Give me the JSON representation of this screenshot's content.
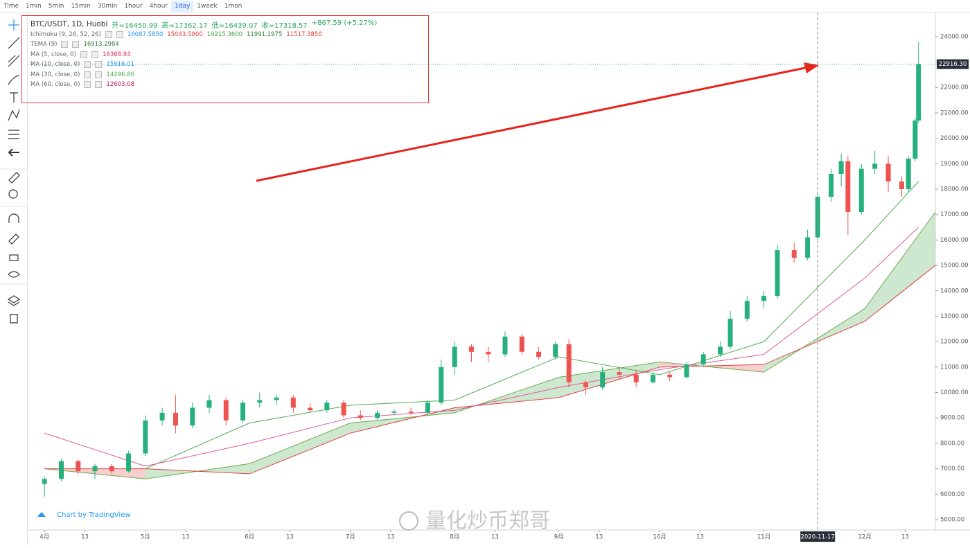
{
  "toolbar": {
    "items": [
      "Time",
      "1min",
      "5min",
      "15min",
      "30min",
      "1hour",
      "4hour",
      "1day",
      "1week",
      "1mon"
    ],
    "active": "1day"
  },
  "legend": {
    "title": "BTC/USDT, 1D, Huobi",
    "ohlc": [
      "开=16450.99",
      "高=17362.17",
      "低=16439.07",
      "收=17318.57",
      "+867.59 (+5.27%)"
    ],
    "indicators": [
      {
        "name": "Ichimoku (9, 26, 52, 26)",
        "values": [
          "16087.5850",
          "15043.5000",
          "19215.3600",
          "11991.1975",
          "11517.3850"
        ],
        "colors": [
          "#2196f3",
          "#e53935",
          "#43a047",
          "#2e7d32",
          "#e53935"
        ]
      },
      {
        "name": "TEMA (9)",
        "values": [
          "16913.2984"
        ],
        "colors": [
          "#2e7d32"
        ]
      },
      {
        "name": "MA (5, close, 0)",
        "values": [
          "16368.93"
        ],
        "colors": [
          "#e91e63"
        ]
      },
      {
        "name": "MA (10, close, 0)",
        "values": [
          "15916.01"
        ],
        "colors": [
          "#2196f3"
        ]
      },
      {
        "name": "MA (30, close, 0)",
        "values": [
          "14296.86"
        ],
        "colors": [
          "#4caf50"
        ]
      },
      {
        "name": "MA (60, close, 0)",
        "values": [
          "12603.08"
        ],
        "colors": [
          "#c2185b"
        ]
      }
    ]
  },
  "chart_data": {
    "type": "candlestick",
    "x": [
      "2020-04-01",
      "2020-04-06",
      "2020-04-11",
      "2020-04-16",
      "2020-04-21",
      "2020-04-26",
      "2020-05-01",
      "2020-05-06",
      "2020-05-10",
      "2020-05-15",
      "2020-05-20",
      "2020-05-25",
      "2020-05-30",
      "2020-06-04",
      "2020-06-09",
      "2020-06-14",
      "2020-06-19",
      "2020-06-24",
      "2020-06-29",
      "2020-07-04",
      "2020-07-09",
      "2020-07-14",
      "2020-07-19",
      "2020-07-24",
      "2020-07-28",
      "2020-08-01",
      "2020-08-06",
      "2020-08-11",
      "2020-08-16",
      "2020-08-21",
      "2020-08-26",
      "2020-08-31",
      "2020-09-04",
      "2020-09-09",
      "2020-09-14",
      "2020-09-19",
      "2020-09-24",
      "2020-09-29",
      "2020-10-04",
      "2020-10-09",
      "2020-10-14",
      "2020-10-19",
      "2020-10-22",
      "2020-10-27",
      "2020-11-01",
      "2020-11-05",
      "2020-11-10",
      "2020-11-14",
      "2020-11-17",
      "2020-11-21",
      "2020-11-24",
      "2020-11-26",
      "2020-11-30",
      "2020-12-04",
      "2020-12-08",
      "2020-12-12",
      "2020-12-14",
      "2020-12-16",
      "2020-12-17"
    ],
    "open": [
      6400,
      6600,
      7300,
      6900,
      7100,
      6900,
      7600,
      8900,
      9200,
      8700,
      9400,
      9700,
      8900,
      9600,
      9700,
      9800,
      9400,
      9300,
      9600,
      9100,
      9000,
      9200,
      9250,
      9200,
      9600,
      11000,
      11800,
      11600,
      11500,
      12200,
      11600,
      11400,
      11900,
      10400,
      10200,
      10800,
      10700,
      10400,
      10700,
      10600,
      11100,
      11500,
      11800,
      12900,
      13600,
      13800,
      15600,
      15300,
      16100,
      17700,
      18600,
      19100,
      17100,
      18800,
      19000,
      18300,
      18000,
      19200,
      20700
    ],
    "high": [
      6700,
      7400,
      7350,
      7200,
      7200,
      7700,
      9100,
      9400,
      9900,
      9600,
      9900,
      9800,
      9700,
      10000,
      9900,
      9900,
      9600,
      9700,
      9700,
      9300,
      9300,
      9350,
      9400,
      9700,
      11300,
      12000,
      11900,
      11800,
      12400,
      12300,
      11800,
      12000,
      12100,
      10500,
      11000,
      11000,
      10900,
      10800,
      10800,
      11200,
      11600,
      12000,
      13200,
      13800,
      14000,
      15800,
      15900,
      16400,
      17800,
      18800,
      19400,
      19300,
      19000,
      19500,
      19300,
      18500,
      19300,
      20800,
      23800
    ],
    "low": [
      5900,
      6500,
      6800,
      6600,
      6800,
      6850,
      7500,
      8700,
      8400,
      8600,
      9200,
      8700,
      8800,
      9400,
      9500,
      9200,
      9200,
      9200,
      9000,
      8900,
      8900,
      9100,
      9100,
      9150,
      9500,
      10700,
      11200,
      11200,
      11400,
      11500,
      11300,
      11300,
      10200,
      9900,
      10100,
      10500,
      10200,
      10350,
      10450,
      10550,
      11000,
      11400,
      11700,
      12800,
      13300,
      13700,
      15100,
      15200,
      16000,
      17500,
      18100,
      16200,
      17000,
      18600,
      17900,
      17700,
      17900,
      19100,
      20600
    ],
    "close": [
      6600,
      7300,
      6900,
      7100,
      6900,
      7600,
      8900,
      9200,
      8700,
      9400,
      9700,
      8900,
      9600,
      9700,
      9800,
      9400,
      9300,
      9600,
      9100,
      9000,
      9200,
      9250,
      9200,
      9600,
      11000,
      11800,
      11600,
      11500,
      12200,
      11600,
      11400,
      11900,
      10400,
      10200,
      10800,
      10700,
      10400,
      10700,
      10600,
      11100,
      11500,
      11800,
      12900,
      13600,
      13800,
      15600,
      15300,
      16100,
      17700,
      18600,
      19100,
      17100,
      18800,
      19000,
      18300,
      18000,
      19200,
      20700,
      22916.3
    ],
    "up_color": "#26b07c",
    "down_color": "#ef5350",
    "lines": [
      {
        "name": "MA (30, close, 0)",
        "color": "#4caf50",
        "x": [
          "2020-05-01",
          "2020-06-01",
          "2020-07-01",
          "2020-08-01",
          "2020-09-01",
          "2020-10-01",
          "2020-11-01",
          "2020-12-01",
          "2020-12-17"
        ],
        "values": [
          7000,
          8800,
          9500,
          9700,
          11400,
          10700,
          12000,
          16000,
          18300
        ]
      },
      {
        "name": "MA (60, close, 0)",
        "color": "#e05599",
        "x": [
          "2020-04-01",
          "2020-05-01",
          "2020-06-01",
          "2020-07-01",
          "2020-08-01",
          "2020-09-01",
          "2020-10-01",
          "2020-11-01",
          "2020-12-01",
          "2020-12-17"
        ],
        "values": [
          8400,
          7100,
          8000,
          9000,
          9300,
          10200,
          10900,
          11500,
          14500,
          16500
        ]
      }
    ],
    "cloud": {
      "x": [
        "2020-04-01",
        "2020-05-01",
        "2020-06-01",
        "2020-07-01",
        "2020-08-01",
        "2020-09-01",
        "2020-10-01",
        "2020-11-01",
        "2020-12-01",
        "2020-12-22"
      ],
      "span_a": [
        7000,
        6600,
        7200,
        8800,
        9200,
        10600,
        11200,
        10800,
        13300,
        17100
      ],
      "span_b": [
        7000,
        7000,
        6800,
        8400,
        9400,
        9800,
        11000,
        11100,
        12800,
        15000
      ],
      "up_color": "#a5d6a7",
      "down_color": "#f4a6a6",
      "a_color": "#6aaa4b",
      "b_color": "#e04040"
    },
    "xlim": [
      "2020-03-27",
      "2020-12-22"
    ],
    "xticks": [
      {
        "value": "2020-04-01",
        "label": "4月"
      },
      {
        "value": "2020-04-13",
        "label": "13"
      },
      {
        "value": "2020-05-01",
        "label": "5月"
      },
      {
        "value": "2020-05-13",
        "label": "13"
      },
      {
        "value": "2020-06-01",
        "label": "6月"
      },
      {
        "value": "2020-06-13",
        "label": "13"
      },
      {
        "value": "2020-07-01",
        "label": "7月"
      },
      {
        "value": "2020-07-13",
        "label": "13"
      },
      {
        "value": "2020-08-01",
        "label": "8月"
      },
      {
        "value": "2020-08-13",
        "label": "13"
      },
      {
        "value": "2020-09-01",
        "label": "9月"
      },
      {
        "value": "2020-09-13",
        "label": "13"
      },
      {
        "value": "2020-10-01",
        "label": "10月"
      },
      {
        "value": "2020-10-13",
        "label": "13"
      },
      {
        "value": "2020-11-01",
        "label": "11月"
      },
      {
        "value": "2020-11-13",
        "label": "13"
      },
      {
        "value": "2020-12-01",
        "label": "12月"
      },
      {
        "value": "2020-12-13",
        "label": "13"
      }
    ],
    "ylim": [
      4590,
      24950
    ],
    "yticks": [
      {
        "value": 5000,
        "label": "5000.00"
      },
      {
        "value": 6000,
        "label": "6000.00"
      },
      {
        "value": 7000,
        "label": "7000.00"
      },
      {
        "value": 8000,
        "label": "8000.00"
      },
      {
        "value": 9000,
        "label": "9000.00"
      },
      {
        "value": 10000,
        "label": "10000.00"
      },
      {
        "value": 11000,
        "label": "11000.00"
      },
      {
        "value": 12000,
        "label": "12000.00"
      },
      {
        "value": 13000,
        "label": "13000.00"
      },
      {
        "value": 14000,
        "label": "14000.00"
      },
      {
        "value": 15000,
        "label": "15000.00"
      },
      {
        "value": 16000,
        "label": "16000.00"
      },
      {
        "value": 17000,
        "label": "17000.00"
      },
      {
        "value": 18000,
        "label": "18000.00"
      },
      {
        "value": 19000,
        "label": "19000.00"
      },
      {
        "value": 20000,
        "label": "20000.00"
      },
      {
        "value": 21000,
        "label": "21000.00"
      },
      {
        "value": 22000,
        "label": "22000.00"
      },
      {
        "value": 23000,
        "label": "23000.00"
      },
      {
        "value": 24000,
        "label": "24000.00"
      }
    ],
    "last_price": {
      "value": 22916.3,
      "label": "22916.30"
    },
    "crosshair": {
      "value": "2020-11-17",
      "label": "2020-11-17"
    },
    "credit": "Chart by TradingView",
    "watermark": "量化炒币郑哥"
  }
}
